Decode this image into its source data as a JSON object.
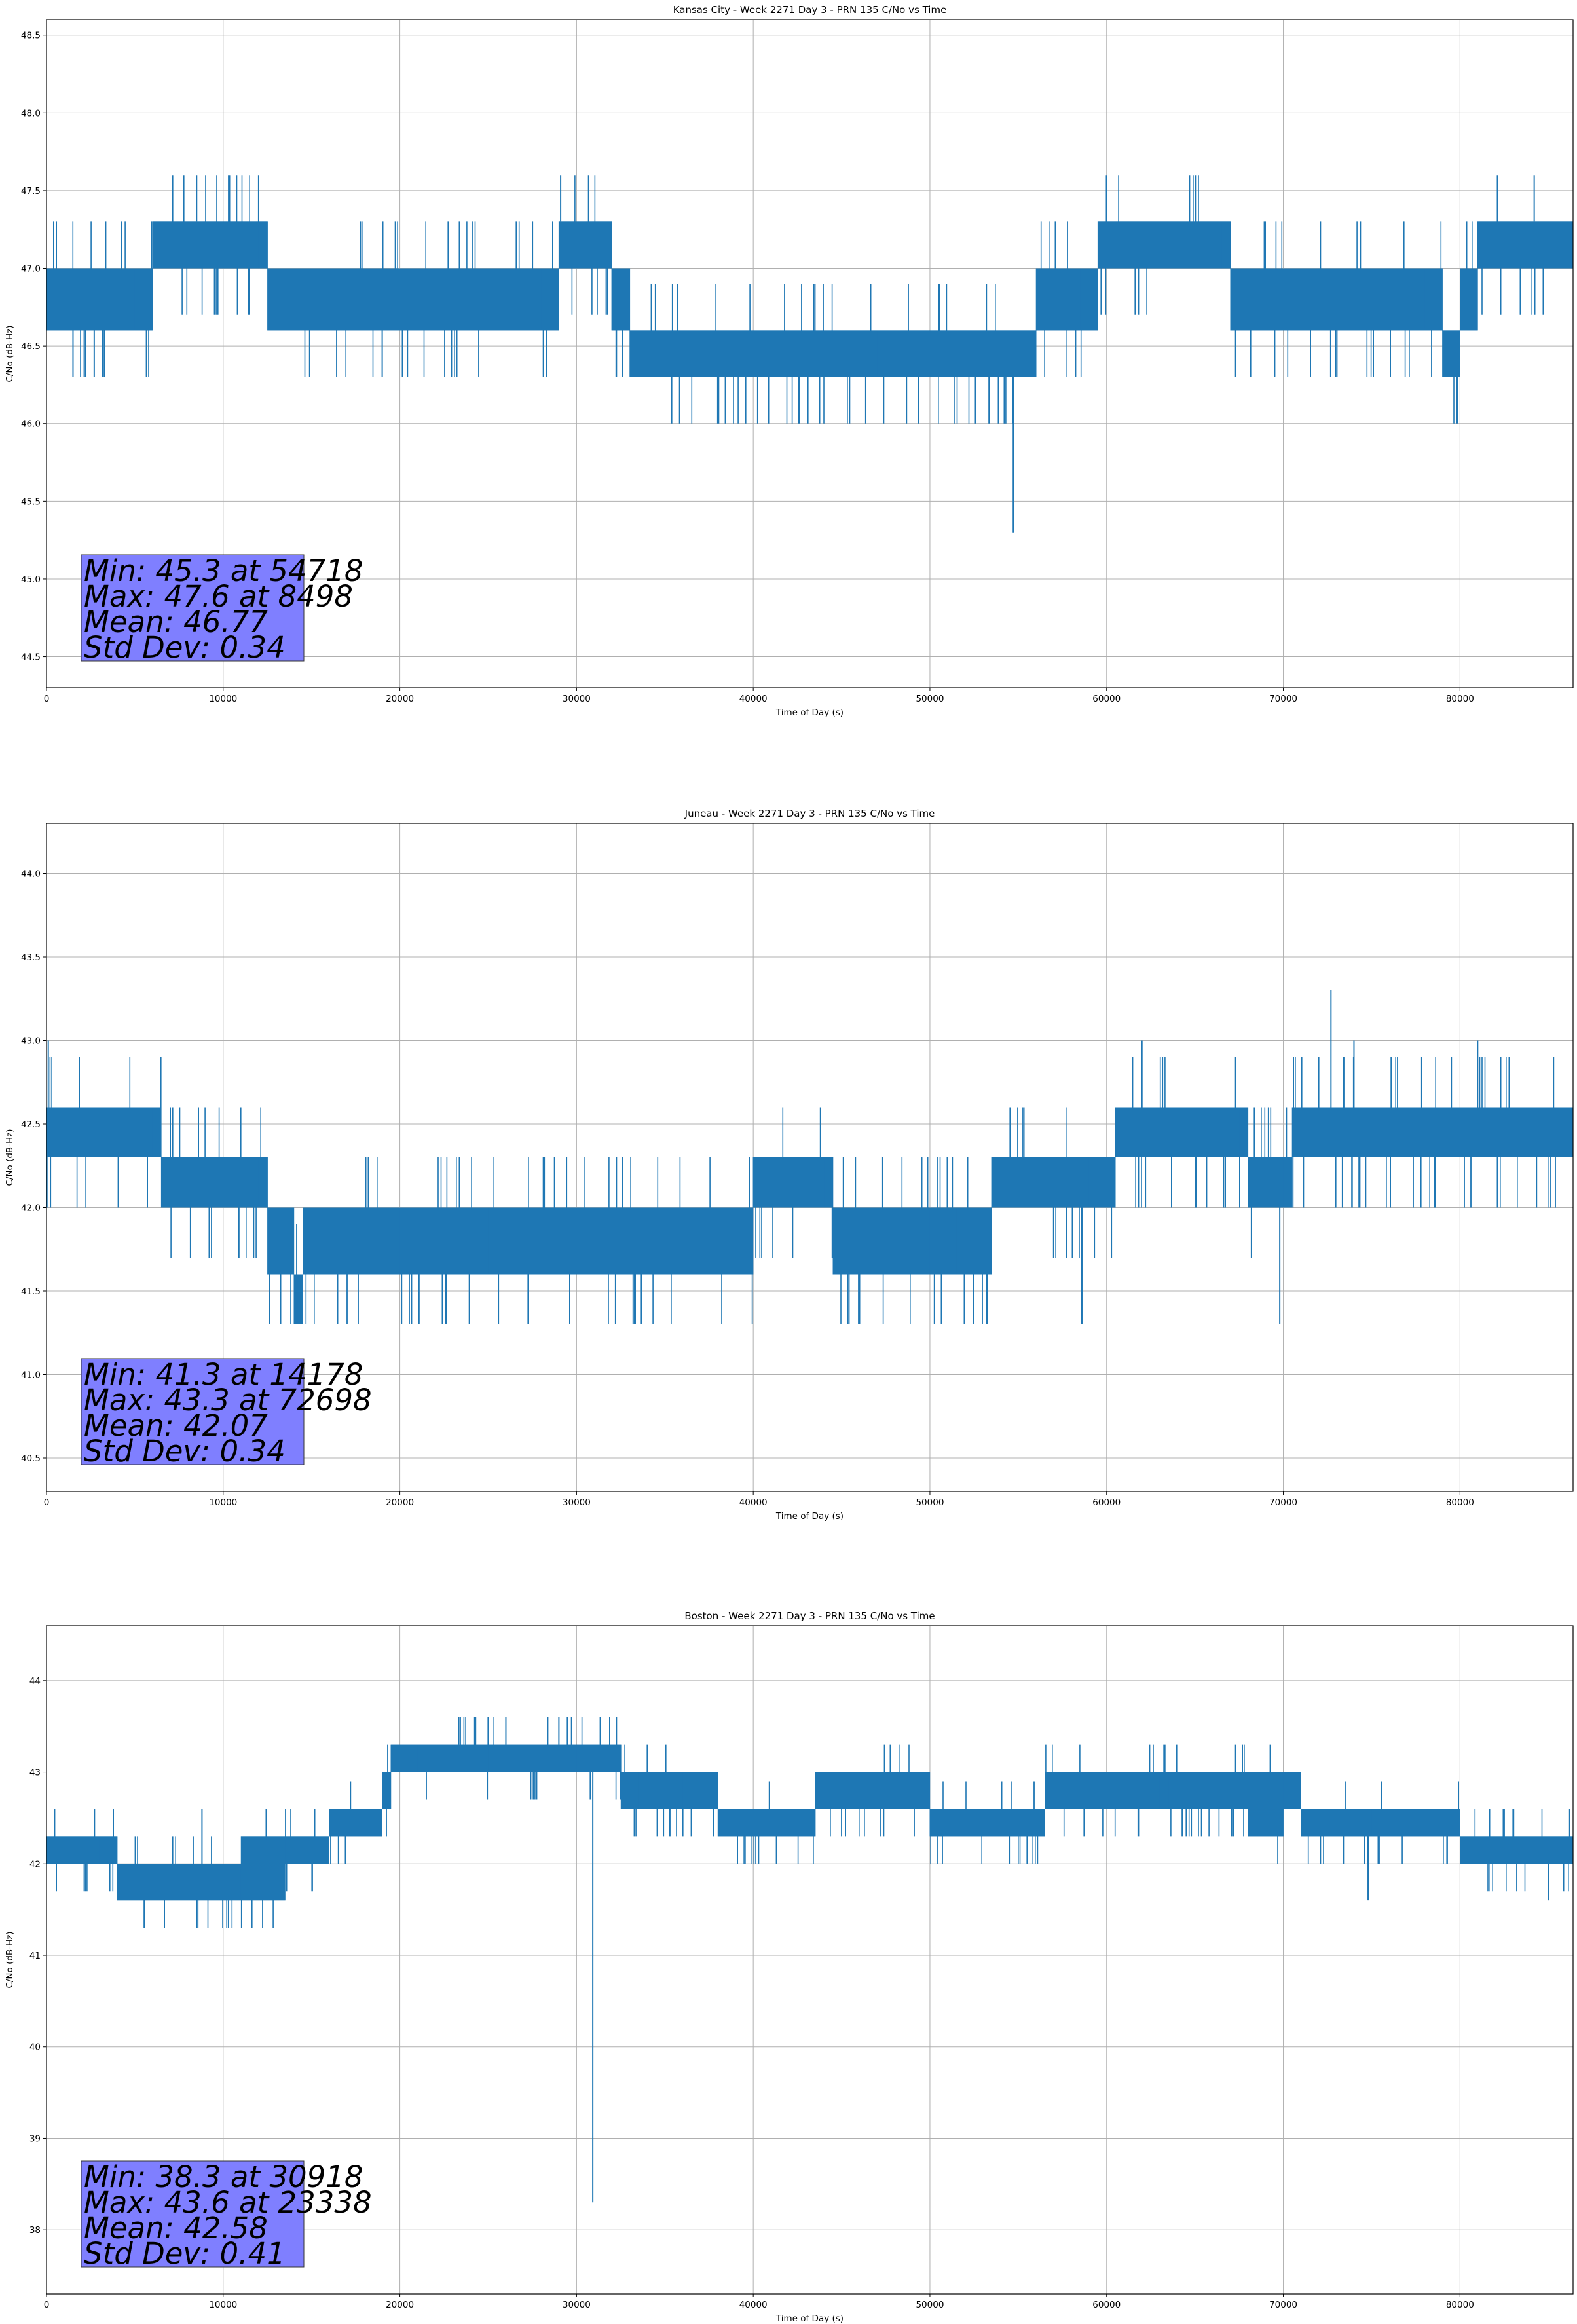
{
  "colors": {
    "series": "#1f77b4",
    "statsbox": "#7f7fff",
    "grid": "#b0b0b0",
    "axes": "#000000"
  },
  "chart_data": [
    {
      "type": "line",
      "title": "Kansas City - Week 2271 Day 3 - PRN 135 C/No vs Time",
      "xlabel": "Time of Day (s)",
      "ylabel": "C/No (dB-Hz)",
      "xlim": [
        0,
        86400
      ],
      "ylim": [
        44.3,
        48.6
      ],
      "xticks": [
        0,
        10000,
        20000,
        30000,
        40000,
        50000,
        60000,
        70000,
        80000
      ],
      "yticks": [
        44.5,
        45.0,
        45.5,
        46.0,
        46.5,
        47.0,
        47.5,
        48.0,
        48.5
      ],
      "ytick_labels": [
        "44.5",
        "45.0",
        "45.5",
        "46.0",
        "46.5",
        "47.0",
        "47.5",
        "48.0",
        "48.5"
      ],
      "quantization": 0.3,
      "series": [
        {
          "name": "PRN 135 C/No",
          "x": [
            0,
            5000,
            6000,
            12000,
            12500,
            28000,
            29000,
            32000,
            33000,
            40000,
            47000,
            55000,
            56000,
            58500,
            59500,
            66500,
            67000,
            78000,
            79000,
            80000,
            81000,
            86400
          ],
          "levels": [
            [
              46.6,
              47.0
            ],
            [
              46.6,
              47.0
            ],
            [
              47.0,
              47.3
            ],
            [
              47.0,
              47.3
            ],
            [
              46.6,
              47.0
            ],
            [
              46.6,
              47.0
            ],
            [
              47.0,
              47.3
            ],
            [
              46.6,
              47.0
            ],
            [
              46.3,
              46.6
            ],
            [
              46.3,
              46.6
            ],
            [
              46.3,
              46.6
            ],
            [
              46.3,
              46.6
            ],
            [
              46.6,
              47.0
            ],
            [
              46.6,
              47.0
            ],
            [
              47.0,
              47.3
            ],
            [
              47.0,
              47.3
            ],
            [
              46.6,
              47.0
            ],
            [
              46.6,
              47.0
            ],
            [
              46.3,
              46.6
            ],
            [
              46.6,
              47.0
            ],
            [
              47.0,
              47.3
            ],
            [
              47.0,
              47.3
            ]
          ],
          "spikes": [
            [
              54718,
              45.3
            ],
            [
              8498,
              47.6
            ],
            [
              29100,
              47.6
            ],
            [
              84200,
              47.6
            ],
            [
              28300,
              46.3
            ],
            [
              19000,
              46.3
            ],
            [
              2700,
              46.3
            ],
            [
              1500,
              46.3
            ]
          ]
        }
      ],
      "stats": [
        "Min: 45.3 at 54718",
        "Max: 47.6 at 8498",
        "Mean: 46.77",
        "Std Dev: 0.34"
      ]
    },
    {
      "type": "line",
      "title": "Juneau - Week 2271 Day 3 - PRN 135 C/No vs Time",
      "xlabel": "Time of Day (s)",
      "ylabel": "C/No (dB-Hz)",
      "xlim": [
        0,
        86400
      ],
      "ylim": [
        40.3,
        44.3
      ],
      "xticks": [
        0,
        10000,
        20000,
        30000,
        40000,
        50000,
        60000,
        70000,
        80000
      ],
      "yticks": [
        40.5,
        41.0,
        41.5,
        42.0,
        42.5,
        43.0,
        43.5,
        44.0
      ],
      "ytick_labels": [
        "40.5",
        "41.0",
        "41.5",
        "42.0",
        "42.5",
        "43.0",
        "43.5",
        "44.0"
      ],
      "quantization": 0.3,
      "series": [
        {
          "name": "PRN 135 C/No",
          "x": [
            0,
            6000,
            6500,
            12000,
            12500,
            14000,
            14500,
            20000,
            25000,
            35000,
            40000,
            44000,
            44500,
            50000,
            51500,
            53500,
            59000,
            60500,
            67500,
            68000,
            70000,
            70500,
            86400
          ],
          "levels": [
            [
              42.3,
              42.6
            ],
            [
              42.3,
              42.6
            ],
            [
              42.0,
              42.3
            ],
            [
              42.0,
              42.3
            ],
            [
              41.6,
              42.0
            ],
            [
              41.3,
              41.6
            ],
            [
              41.6,
              42.0
            ],
            [
              41.6,
              42.0
            ],
            [
              41.6,
              42.0
            ],
            [
              41.6,
              42.0
            ],
            [
              42.0,
              42.3
            ],
            [
              42.0,
              42.3
            ],
            [
              41.6,
              42.0
            ],
            [
              41.6,
              42.0
            ],
            [
              41.6,
              42.0
            ],
            [
              42.0,
              42.3
            ],
            [
              42.0,
              42.3
            ],
            [
              42.3,
              42.6
            ],
            [
              42.3,
              42.6
            ],
            [
              42.0,
              42.3
            ],
            [
              42.0,
              42.3
            ],
            [
              42.3,
              42.6
            ],
            [
              42.3,
              42.6
            ]
          ],
          "spikes": [
            [
              72698,
              43.3
            ],
            [
              14178,
              41.3
            ],
            [
              100,
              43.0
            ],
            [
              62000,
              43.0
            ],
            [
              74000,
              43.0
            ],
            [
              81000,
              43.0
            ],
            [
              69800,
              41.3
            ],
            [
              58600,
              41.3
            ]
          ]
        }
      ],
      "stats": [
        "Min: 41.3 at 14178",
        "Max: 43.3 at 72698",
        "Mean: 42.07",
        "Std Dev: 0.34"
      ]
    },
    {
      "type": "line",
      "title": "Boston - Week 2271 Day 3 - PRN 135 C/No vs Time",
      "xlabel": "Time of Day (s)",
      "ylabel": "C/No (dB-Hz)",
      "xlim": [
        0,
        86400
      ],
      "ylim": [
        37.3,
        44.6
      ],
      "xticks": [
        0,
        10000,
        20000,
        30000,
        40000,
        50000,
        60000,
        70000,
        80000
      ],
      "yticks": [
        38,
        39,
        40,
        41,
        42,
        43,
        44
      ],
      "ytick_labels": [
        "38",
        "39",
        "40",
        "41",
        "42",
        "43",
        "44"
      ],
      "quantization": 0.3,
      "series": [
        {
          "name": "PRN 135 C/No",
          "x": [
            0,
            3000,
            4000,
            11000,
            13500,
            16000,
            17000,
            19000,
            19500,
            21000,
            25000,
            30000,
            32500,
            33500,
            36000,
            38000,
            43000,
            43500,
            49500,
            50000,
            56000,
            56500,
            63000,
            63500,
            68000,
            70000,
            71000,
            75000,
            80000,
            86400
          ],
          "levels": [
            [
              42.0,
              42.3
            ],
            [
              42.0,
              42.3
            ],
            [
              41.6,
              42.0
            ],
            [
              41.6,
              42.3
            ],
            [
              42.0,
              42.3
            ],
            [
              42.3,
              42.6
            ],
            [
              42.3,
              42.6
            ],
            [
              42.6,
              43.0
            ],
            [
              43.0,
              43.3
            ],
            [
              43.0,
              43.3
            ],
            [
              43.0,
              43.3
            ],
            [
              43.0,
              43.3
            ],
            [
              42.6,
              43.0
            ],
            [
              42.6,
              43.0
            ],
            [
              42.6,
              43.0
            ],
            [
              42.3,
              42.6
            ],
            [
              42.3,
              42.6
            ],
            [
              42.6,
              43.0
            ],
            [
              42.6,
              43.0
            ],
            [
              42.3,
              42.6
            ],
            [
              42.3,
              42.6
            ],
            [
              42.6,
              43.0
            ],
            [
              42.6,
              43.0
            ],
            [
              42.6,
              43.0
            ],
            [
              42.3,
              43.0
            ],
            [
              42.6,
              43.0
            ],
            [
              42.3,
              42.6
            ],
            [
              42.3,
              42.6
            ],
            [
              42.0,
              42.3
            ],
            [
              42.0,
              42.3
            ]
          ],
          "spikes": [
            [
              30918,
              38.3
            ],
            [
              23338,
              43.6
            ],
            [
              26000,
              43.6
            ],
            [
              29000,
              43.6
            ],
            [
              10300,
              41.3
            ],
            [
              74800,
              41.6
            ],
            [
              85000,
              41.6
            ],
            [
              8800,
              42.6
            ]
          ]
        }
      ],
      "stats": [
        "Min: 38.3 at 30918",
        "Max: 43.6 at 23338",
        "Mean: 42.58",
        "Std Dev: 0.41"
      ]
    }
  ]
}
